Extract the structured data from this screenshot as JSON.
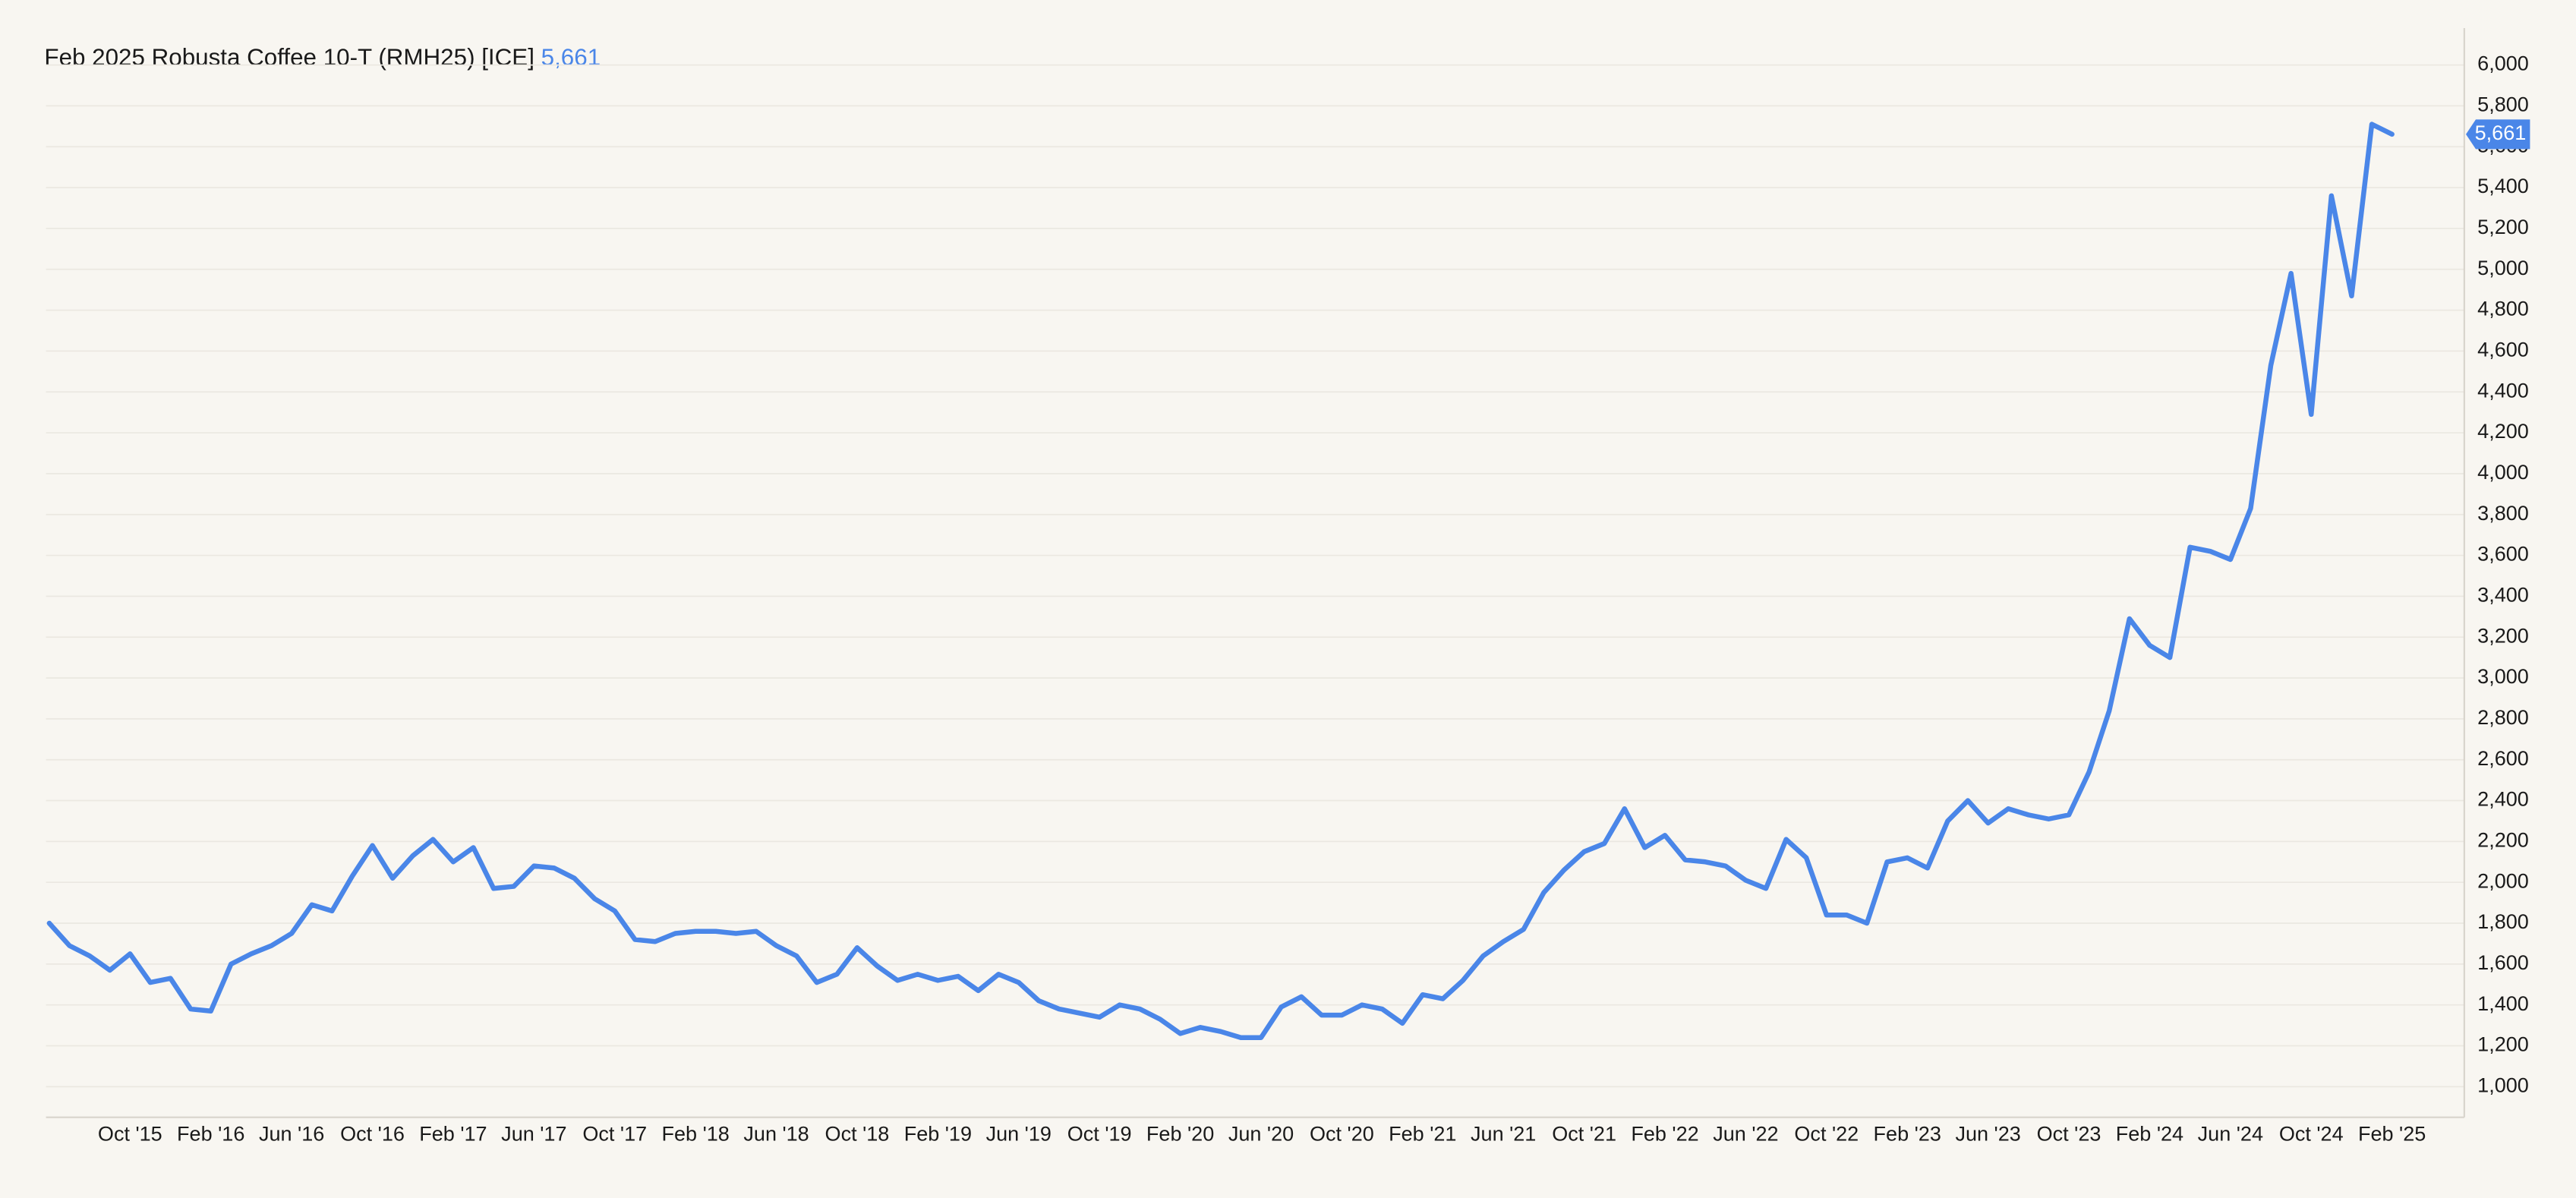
{
  "chart_data": {
    "type": "line",
    "title": "Feb 2025 Robusta Coffee 10-T (RMH25) [ICE]",
    "current_value": {
      "value": 5661,
      "label": "5,661"
    },
    "categories": [
      null,
      null,
      null,
      null,
      "Oct '15",
      null,
      null,
      null,
      "Feb '16",
      null,
      null,
      null,
      "Jun '16",
      null,
      null,
      null,
      "Oct '16",
      null,
      null,
      null,
      "Feb '17",
      null,
      null,
      null,
      "Jun '17",
      null,
      null,
      null,
      "Oct '17",
      null,
      null,
      null,
      "Feb '18",
      null,
      null,
      null,
      "Jun '18",
      null,
      null,
      null,
      "Oct '18",
      null,
      null,
      null,
      "Feb '19",
      null,
      null,
      null,
      "Jun '19",
      null,
      null,
      null,
      "Oct '19",
      null,
      null,
      null,
      "Feb '20",
      null,
      null,
      null,
      "Jun '20",
      null,
      null,
      null,
      "Oct '20",
      null,
      null,
      null,
      "Feb '21",
      null,
      null,
      null,
      "Jun '21",
      null,
      null,
      null,
      "Oct '21",
      null,
      null,
      null,
      "Feb '22",
      null,
      null,
      null,
      "Jun '22",
      null,
      null,
      null,
      "Oct '22",
      null,
      null,
      null,
      "Feb '23",
      null,
      null,
      null,
      "Jun '23",
      null,
      null,
      null,
      "Oct '23",
      null,
      null,
      null,
      "Feb '24",
      null,
      null,
      null,
      "Jun '24",
      null,
      null,
      null,
      "Oct '24",
      null,
      null,
      null,
      "Feb '25"
    ],
    "series": [
      {
        "color": "#4a86e8",
        "values": [
          1800,
          1690,
          1640,
          1570,
          1650,
          1510,
          1530,
          1380,
          1370,
          1600,
          1650,
          1690,
          1750,
          1890,
          1860,
          2030,
          2180,
          2020,
          2130,
          2210,
          2100,
          2170,
          1970,
          1980,
          2080,
          2070,
          2020,
          1920,
          1860,
          1720,
          1710,
          1750,
          1760,
          1760,
          1750,
          1760,
          1690,
          1640,
          1510,
          1550,
          1680,
          1590,
          1520,
          1550,
          1520,
          1540,
          1470,
          1550,
          1510,
          1420,
          1380,
          1360,
          1340,
          1400,
          1380,
          1330,
          1260,
          1290,
          1270,
          1240,
          1240,
          1390,
          1440,
          1350,
          1350,
          1400,
          1380,
          1310,
          1450,
          1430,
          1520,
          1640,
          1710,
          1770,
          1950,
          2060,
          2150,
          2190,
          2360,
          2170,
          2230,
          2110,
          2100,
          2080,
          2010,
          1970,
          2210,
          2120,
          1840,
          1840,
          1800,
          2100,
          2120,
          2070,
          2300,
          2400,
          2290,
          2360,
          2330,
          2310,
          2330,
          2540,
          2840,
          3290,
          3160,
          3100,
          3640,
          3620,
          3580,
          3830,
          4530,
          4980,
          4290,
          5360,
          4870,
          5710,
          5661
        ]
      }
    ],
    "ylim": [
      850,
      6100
    ],
    "yticks": [
      {
        "value": 1000,
        "label": "1,000"
      },
      {
        "value": 1200,
        "label": "1,200"
      },
      {
        "value": 1400,
        "label": "1,400"
      },
      {
        "value": 1600,
        "label": "1,600"
      },
      {
        "value": 1800,
        "label": "1,800"
      },
      {
        "value": 2000,
        "label": "2,000"
      },
      {
        "value": 2200,
        "label": "2,200"
      },
      {
        "value": 2400,
        "label": "2,400"
      },
      {
        "value": 2600,
        "label": "2,600"
      },
      {
        "value": 2800,
        "label": "2,800"
      },
      {
        "value": 3000,
        "label": "3,000"
      },
      {
        "value": 3200,
        "label": "3,200"
      },
      {
        "value": 3400,
        "label": "3,400"
      },
      {
        "value": 3600,
        "label": "3,600"
      },
      {
        "value": 3800,
        "label": "3,800"
      },
      {
        "value": 4000,
        "label": "4,000"
      },
      {
        "value": 4200,
        "label": "4,200"
      },
      {
        "value": 4400,
        "label": "4,400"
      },
      {
        "value": 4600,
        "label": "4,600"
      },
      {
        "value": 4800,
        "label": "4,800"
      },
      {
        "value": 5000,
        "label": "5,000"
      },
      {
        "value": 5200,
        "label": "5,200"
      },
      {
        "value": 5400,
        "label": "5,400"
      },
      {
        "value": 5600,
        "label": "5,600"
      },
      {
        "value": 5800,
        "label": "5,800"
      },
      {
        "value": 6000,
        "label": "6,000"
      }
    ],
    "grid": true
  }
}
